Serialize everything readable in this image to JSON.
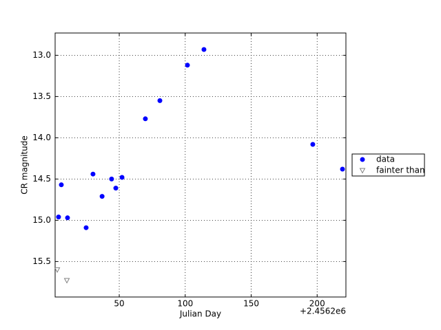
{
  "chart_data": {
    "type": "scatter",
    "x_label": "Julian Day",
    "y_label": "CR magnitude",
    "x_offset_label": "+2.4562e6",
    "xlim": [
      1.4,
      221.8
    ],
    "xticks": [
      50,
      100,
      150,
      200
    ],
    "ylim": [
      15.93,
      12.73
    ],
    "inverted_y": true,
    "yticks": [
      {
        "value": 13,
        "label": "13.0"
      },
      {
        "value": 13.5,
        "label": "13.5"
      },
      {
        "value": 14,
        "label": "14.0"
      },
      {
        "value": 14.5,
        "label": "14.5"
      },
      {
        "value": 15,
        "label": "15.0"
      },
      {
        "value": 15.5,
        "label": "15.5"
      }
    ],
    "grid": true,
    "legend": "outside right",
    "series": [
      {
        "name": "data",
        "color": "#0000ff",
        "marker": "circle",
        "filled": true,
        "x": [
          4.0,
          6.1,
          10.8,
          24.9,
          30.1,
          37.0,
          44.2,
          47.4,
          52.1,
          69.8,
          80.8,
          101.7,
          114.2,
          196.7,
          219.2
        ],
        "values": [
          14.96,
          14.57,
          14.97,
          15.09,
          14.44,
          14.71,
          14.5,
          14.61,
          14.48,
          13.77,
          13.55,
          13.12,
          12.93,
          14.08,
          14.38
        ]
      },
      {
        "name": "fainter than",
        "color": "#808080",
        "marker": "triangle-down",
        "filled": false,
        "x": [
          3.0,
          10.3
        ],
        "values": [
          15.6,
          15.73
        ]
      }
    ]
  }
}
